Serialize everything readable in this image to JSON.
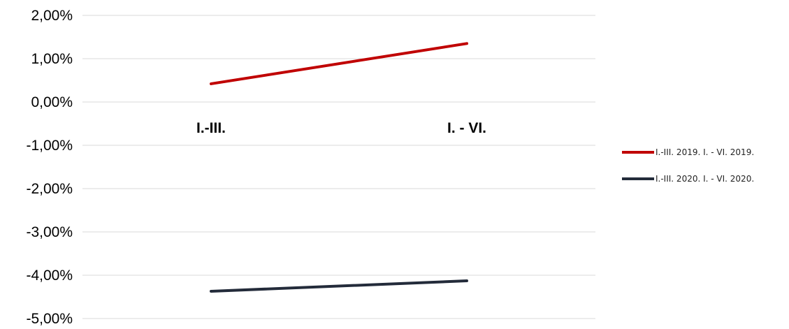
{
  "chart_data": {
    "type": "line",
    "title": "",
    "xlabel": "",
    "ylabel": "",
    "categories": [
      "I.-III.",
      "I. - VI."
    ],
    "y_tick_labels": [
      "2,00%",
      "1,00%",
      "0,00%",
      "-1,00%",
      "-2,00%",
      "-3,00%",
      "-4,00%",
      "-5,00%"
    ],
    "y_ticks": [
      2,
      1,
      0,
      -1,
      -2,
      -3,
      -4,
      -5
    ],
    "ylim": [
      -5,
      2
    ],
    "y_unit": "%",
    "grid": "horizontal",
    "legend_position": "right",
    "series": [
      {
        "name": "I.-III. 2019. I. - VI. 2019.",
        "values": [
          0.42,
          1.35
        ],
        "color": "#c00000"
      },
      {
        "name": "I.-III. 2020. I. - VI. 2020.",
        "values": [
          -4.37,
          -4.13
        ],
        "color": "#232b3a"
      }
    ]
  }
}
